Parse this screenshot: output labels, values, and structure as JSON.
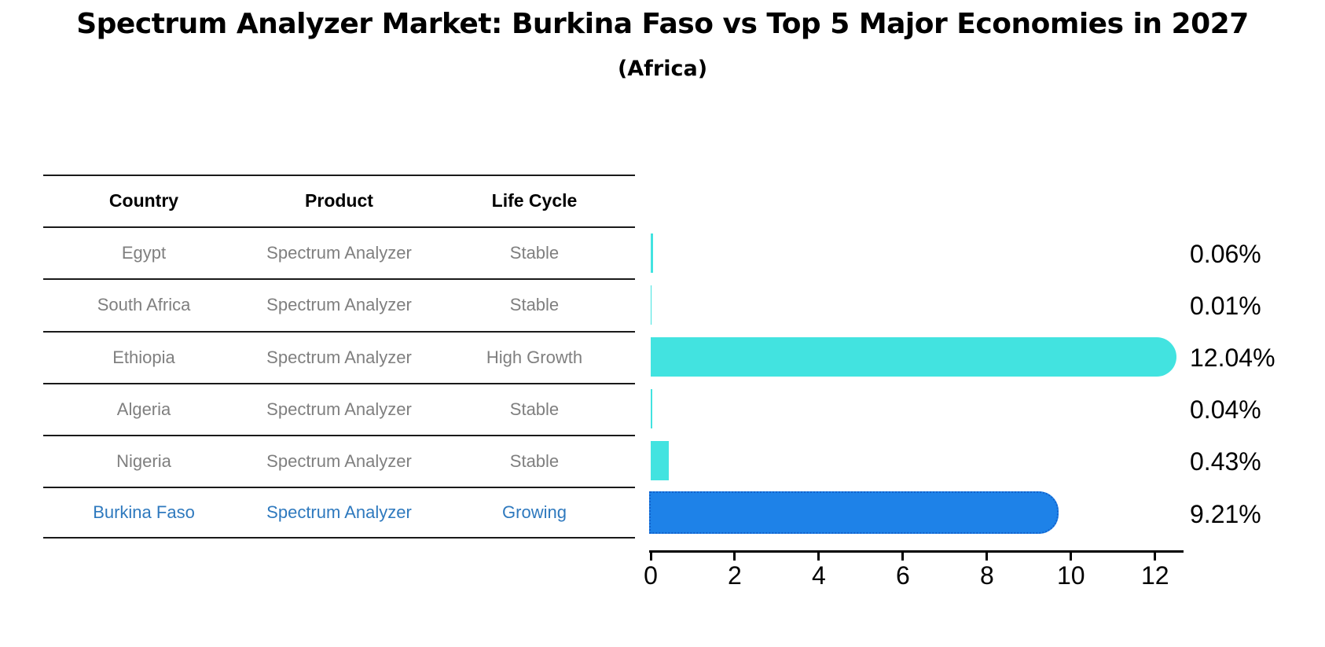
{
  "title": "Spectrum Analyzer Market: Burkina Faso vs Top 5 Major Economies in 2027",
  "subtitle": "(Africa)",
  "table": {
    "headers": [
      "Country",
      "Product",
      "Life Cycle"
    ],
    "rows": [
      {
        "country": "Egypt",
        "product": "Spectrum Analyzer",
        "life_cycle": "Stable"
      },
      {
        "country": "South Africa",
        "product": "Spectrum Analyzer",
        "life_cycle": "Stable"
      },
      {
        "country": "Ethiopia",
        "product": "Spectrum Analyzer",
        "life_cycle": "High Growth"
      },
      {
        "country": "Algeria",
        "product": "Spectrum Analyzer",
        "life_cycle": "Stable"
      },
      {
        "country": "Nigeria",
        "product": "Spectrum Analyzer",
        "life_cycle": "Stable"
      },
      {
        "country": "Burkina Faso",
        "product": "Spectrum Analyzer",
        "life_cycle": "Growing"
      }
    ],
    "highlight_row_index": 5
  },
  "chart_data": {
    "type": "bar",
    "orientation": "horizontal",
    "title": "Spectrum Analyzer Market: Burkina Faso vs Top 5 Major Economies in 2027",
    "subtitle": "(Africa)",
    "categories": [
      "Egypt",
      "South Africa",
      "Ethiopia",
      "Algeria",
      "Nigeria",
      "Burkina Faso"
    ],
    "values": [
      0.06,
      0.01,
      12.04,
      0.04,
      0.43,
      9.21
    ],
    "value_labels": [
      "0.06%",
      "0.01%",
      "12.04%",
      "0.04%",
      "0.43%",
      "9.21%"
    ],
    "bar_colors": [
      "#42e3e0",
      "#42e3e0",
      "#42e3e0",
      "#42e3e0",
      "#42e3e0",
      "#1e82e8"
    ],
    "highlight_index": 5,
    "highlight_border_color": "#1262cc",
    "x_ticks": [
      0,
      2,
      4,
      6,
      8,
      10,
      12
    ],
    "xlim": [
      0,
      12.64
    ],
    "xlabel": "",
    "ylabel": "",
    "grid": false,
    "legend": null
  },
  "colors": {
    "accent_cyan": "#42e3e0",
    "accent_blue": "#1e82e8",
    "highlight_text": "#2e79be",
    "muted_text": "#7f7f7f",
    "axis_color": "#000000"
  }
}
